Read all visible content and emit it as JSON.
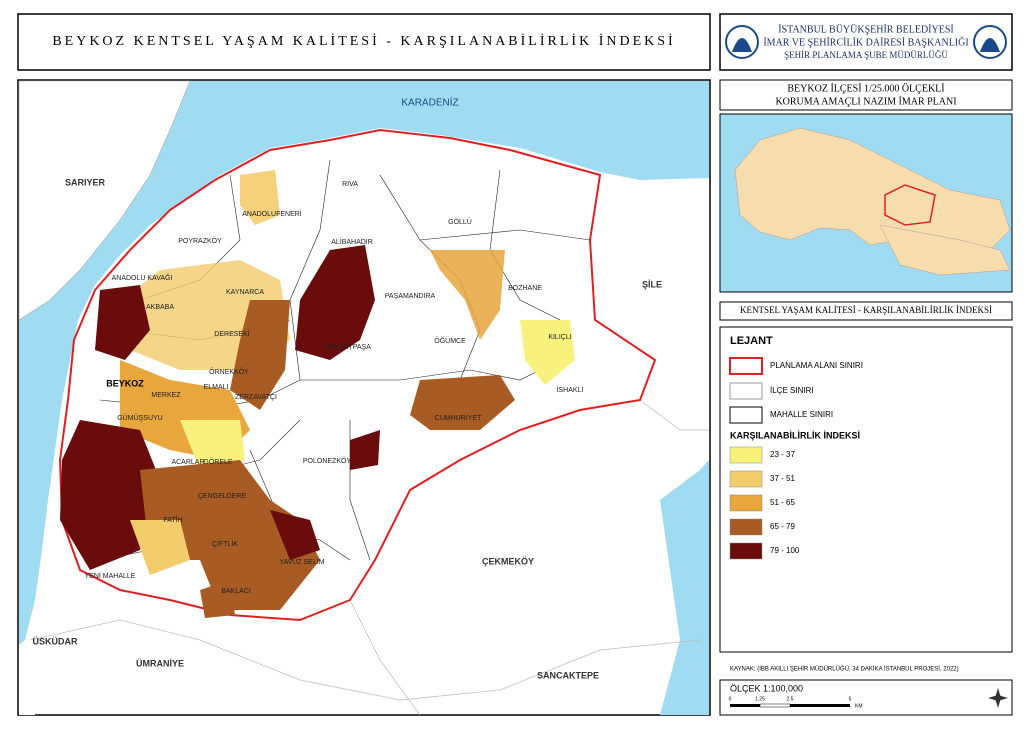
{
  "header": {
    "title": "BEYKOZ KENTSEL YAŞAM KALİTESİ - KARŞILANABİLİRLİK İNDEKSİ",
    "org_lines": [
      "İSTANBUL BÜYÜKŞEHİR BELEDİYESİ",
      "İMAR VE ŞEHİRCİLİK DAİRESİ BAŞKANLIĞI",
      "ŞEHİR PLANLAMA ŞUBE MÜDÜRLÜĞÜ"
    ]
  },
  "plan_title": [
    "BEYKOZ İLÇESİ 1/25.000 ÖLÇEKLİ",
    "KORUMA AMAÇLI NAZIM İMAR PLANI"
  ],
  "section_title": "KENTSEL YAŞAM KALİTESİ - KARŞILANABİLİRLİK İNDEKSİ",
  "legend": {
    "title": "LEJANT",
    "boundaries": [
      "PLANLAMA ALANI SINIRI",
      "İLÇE SINIRI",
      "MAHALLE SINIRI"
    ],
    "index_title": "KARŞILANABİLİRLİK İNDEKSİ",
    "classes": [
      {
        "label": "23 - 37",
        "color": "#f8f27c"
      },
      {
        "label": "37 - 51",
        "color": "#f3cc6c"
      },
      {
        "label": "51 - 65",
        "color": "#e8a63c"
      },
      {
        "label": "65 - 79",
        "color": "#a85c24"
      },
      {
        "label": "79 - 100",
        "color": "#6b0c0c"
      }
    ]
  },
  "source": "KAYNAK: (İBB AKILLI ŞEHİR MÜDÜRLÜĞÜ, 34 DAKİKA İSTANBUL PROJESİ, 2022)",
  "scale": {
    "title": "ÖLÇEK 1:100,000",
    "ticks": [
      "0",
      "1.25",
      "2.5",
      "5"
    ],
    "unit": "KM"
  },
  "map": {
    "labels": [
      "KARADENİZ",
      "SARIYER",
      "ŞİLE",
      "ÜSKÜDAR",
      "ÜMRANİYE",
      "SANCAKTEPE",
      "ÇEKMEKÖY",
      "RİVA",
      "GÖLLÜ",
      "ANADOLUFENERİ",
      "POYRAZKÖY",
      "ALİBAHADIR",
      "ANADOLU KAVAĞI",
      "KAYNARCA",
      "PAŞAMANDIRA",
      "BOZHANE",
      "AKBABA",
      "DERESEKİ",
      "ŞEVKETPAŞA",
      "ÖĞÜMCE",
      "KILIÇLI",
      "BEYKOZ",
      "ELMALI",
      "ÖRNEKKÖY",
      "İSHAKLI",
      "MERKEZ",
      "ZERZAVATÇI",
      "CUMHURİYET",
      "GÜMÜŞSUYU",
      "POLONEZKÖY",
      "ACARLAR",
      "GÖRELE",
      "ÇENGELDERE",
      "FATİH",
      "ÇİFTLİK",
      "YAVUZ SELİM",
      "YENİ MAHALLE",
      "BAKLACI"
    ]
  }
}
